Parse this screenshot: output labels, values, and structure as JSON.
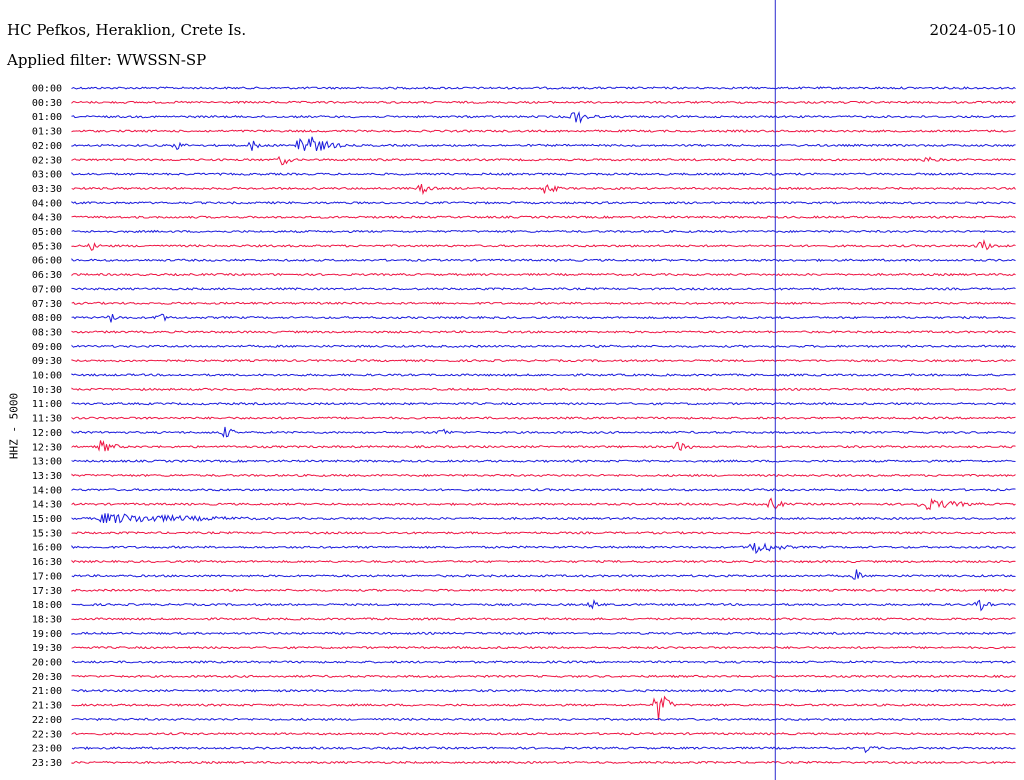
{
  "header": {
    "station": "HC Pefkos, Heraklion, Crete Is.",
    "date": "2024-05-10",
    "filter": "Applied filter: WWSSN-SP"
  },
  "chart_data": {
    "type": "line",
    "ylabel": "HHZ - 5000",
    "colors": {
      "blue": "#1a1adc",
      "red": "#ee1443",
      "marker": "#2a2ad0"
    },
    "rows": [
      "00:00",
      "00:30",
      "01:00",
      "01:30",
      "02:00",
      "02:30",
      "03:00",
      "03:30",
      "04:00",
      "04:30",
      "05:00",
      "05:30",
      "06:00",
      "06:30",
      "07:00",
      "07:30",
      "08:00",
      "08:30",
      "09:00",
      "09:30",
      "10:00",
      "10:30",
      "11:00",
      "11:30",
      "12:00",
      "12:30",
      "13:00",
      "13:30",
      "14:00",
      "14:30",
      "15:00",
      "15:30",
      "16:00",
      "16:30",
      "17:00",
      "17:30",
      "18:00",
      "18:30",
      "19:00",
      "19:30",
      "20:00",
      "20:30",
      "21:00",
      "21:30",
      "22:00",
      "22:30",
      "23:00",
      "23:30"
    ],
    "events": [
      {
        "row": 2,
        "x": 0.53,
        "amp": 10,
        "w": 0.03
      },
      {
        "row": 4,
        "x": 0.24,
        "amp": 18,
        "w": 0.045
      },
      {
        "row": 4,
        "x": 0.11,
        "amp": 5,
        "w": 0.02
      },
      {
        "row": 4,
        "x": 0.19,
        "amp": 7,
        "w": 0.02
      },
      {
        "row": 5,
        "x": 0.22,
        "amp": 8,
        "w": 0.02
      },
      {
        "row": 5,
        "x": 0.9,
        "amp": 5,
        "w": 0.03
      },
      {
        "row": 7,
        "x": 0.37,
        "amp": 7,
        "w": 0.02
      },
      {
        "row": 7,
        "x": 0.5,
        "amp": 6,
        "w": 0.03
      },
      {
        "row": 11,
        "x": 0.02,
        "amp": 5,
        "w": 0.02
      },
      {
        "row": 11,
        "x": 0.96,
        "amp": 8,
        "w": 0.03
      },
      {
        "row": 16,
        "x": 0.04,
        "amp": 6,
        "w": 0.02
      },
      {
        "row": 16,
        "x": 0.09,
        "amp": 7,
        "w": 0.02
      },
      {
        "row": 24,
        "x": 0.16,
        "amp": 8,
        "w": 0.02
      },
      {
        "row": 24,
        "x": 0.39,
        "amp": 6,
        "w": 0.02
      },
      {
        "row": 25,
        "x": 0.03,
        "amp": 8,
        "w": 0.03
      },
      {
        "row": 25,
        "x": 0.64,
        "amp": 6,
        "w": 0.03
      },
      {
        "row": 29,
        "x": 0.74,
        "amp": 9,
        "w": 0.02
      },
      {
        "row": 29,
        "x": 0.9,
        "amp": 7,
        "w": 0.08
      },
      {
        "row": 30,
        "x": 0.03,
        "amp": 6,
        "w": 0.24
      },
      {
        "row": 32,
        "x": 0.72,
        "amp": 9,
        "w": 0.05
      },
      {
        "row": 34,
        "x": 0.83,
        "amp": 9,
        "w": 0.01
      },
      {
        "row": 36,
        "x": 0.55,
        "amp": 6,
        "w": 0.02
      },
      {
        "row": 36,
        "x": 0.96,
        "amp": 8,
        "w": 0.02
      },
      {
        "row": 43,
        "x": 0.62,
        "amp": 20,
        "w": 0.02
      },
      {
        "row": 46,
        "x": 0.84,
        "amp": 5,
        "w": 0.02
      }
    ],
    "marker_fraction": 0.745,
    "grid": false
  }
}
